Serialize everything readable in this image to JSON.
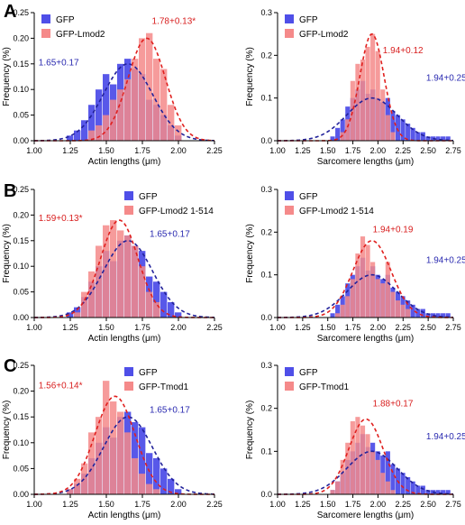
{
  "colors": {
    "gfp": "#4f4fe8",
    "treat": "#f58a8a",
    "fit_gfp": "#22229a",
    "fit_treat": "#e0201e",
    "annot_gfp": "#2a2ab0",
    "annot_treat": "#d81e1e"
  },
  "panel_letters": [
    "A",
    "B",
    "C"
  ],
  "chart_data": [
    {
      "type": "bar",
      "id": "A-actin",
      "xlabel": "Actin lengths (μm)",
      "ylabel": "Frequency (%)",
      "xlim": [
        1.0,
        2.25
      ],
      "ylim": [
        0,
        0.25
      ],
      "xticks": [
        "1.00",
        "1.25",
        "1.50",
        "1.75",
        "2.00",
        "2.25"
      ],
      "yticks": [
        "0.00",
        "0.05",
        "0.10",
        "0.15",
        "0.20",
        "0.25"
      ],
      "bin_width": 0.05,
      "legend_position": "top-left",
      "series": [
        {
          "name": "GFP",
          "bins": [
            1.25,
            1.3,
            1.35,
            1.4,
            1.45,
            1.5,
            1.55,
            1.6,
            1.65,
            1.7,
            1.75,
            1.8,
            1.85,
            1.9,
            1.95,
            2.0
          ],
          "values": [
            0.01,
            0.02,
            0.04,
            0.07,
            0.1,
            0.13,
            0.11,
            0.15,
            0.16,
            0.14,
            0.13,
            0.08,
            0.07,
            0.05,
            0.03,
            0.01
          ],
          "fit": {
            "mean": 1.65,
            "sd": 0.17,
            "peak": 0.15
          },
          "annotation": "1.65+0.17"
        },
        {
          "name": "GFP-Lmod2",
          "bins": [
            1.4,
            1.45,
            1.5,
            1.55,
            1.6,
            1.65,
            1.7,
            1.75,
            1.8,
            1.85,
            1.9,
            1.95,
            2.0
          ],
          "values": [
            0.02,
            0.03,
            0.05,
            0.08,
            0.1,
            0.12,
            0.16,
            0.2,
            0.21,
            0.16,
            0.14,
            0.07,
            0.03
          ],
          "fit": {
            "mean": 1.78,
            "sd": 0.13,
            "peak": 0.2
          },
          "annotation": "1.78+0.13*"
        }
      ]
    },
    {
      "type": "bar",
      "id": "A-sarcomere",
      "xlabel": "Sarcomere lengths (μm)",
      "ylabel": "Frequency (%)",
      "xlim": [
        1.0,
        2.75
      ],
      "ylim": [
        0,
        0.3
      ],
      "xticks": [
        "1.00",
        "1.25",
        "1.50",
        "1.75",
        "2.00",
        "2.25",
        "2.50",
        "2.75"
      ],
      "yticks": [
        "0.0",
        "0.1",
        "0.2",
        "0.3"
      ],
      "bin_width": 0.05,
      "legend_position": "top-left",
      "series": [
        {
          "name": "GFP",
          "bins": [
            1.55,
            1.6,
            1.65,
            1.7,
            1.75,
            1.8,
            1.85,
            1.9,
            1.95,
            2.0,
            2.05,
            2.1,
            2.15,
            2.2,
            2.25,
            2.3,
            2.35,
            2.4,
            2.45,
            2.5,
            2.55,
            2.6,
            2.65,
            2.7
          ],
          "values": [
            0.01,
            0.03,
            0.05,
            0.08,
            0.1,
            0.12,
            0.14,
            0.11,
            0.12,
            0.1,
            0.09,
            0.1,
            0.07,
            0.06,
            0.05,
            0.04,
            0.03,
            0.02,
            0.02,
            0.01,
            0.01,
            0.01,
            0.01,
            0.01
          ],
          "fit": {
            "mean": 1.94,
            "sd": 0.25,
            "peak": 0.1
          },
          "annotation": "1.94+0.25"
        },
        {
          "name": "GFP-Lmod2",
          "bins": [
            1.65,
            1.7,
            1.75,
            1.8,
            1.85,
            1.9,
            1.95,
            2.0,
            2.05,
            2.1,
            2.15
          ],
          "values": [
            0.02,
            0.05,
            0.14,
            0.18,
            0.19,
            0.22,
            0.25,
            0.21,
            0.12,
            0.06,
            0.02
          ],
          "fit": {
            "mean": 1.94,
            "sd": 0.12,
            "peak": 0.25
          },
          "annotation": "1.94+0.12"
        }
      ]
    },
    {
      "type": "bar",
      "id": "B-actin",
      "xlabel": "Actin lengths (μm)",
      "ylabel": "Frequency (%)",
      "xlim": [
        1.0,
        2.25
      ],
      "ylim": [
        0,
        0.25
      ],
      "xticks": [
        "1.00",
        "1.25",
        "1.50",
        "1.75",
        "2.00",
        "2.25"
      ],
      "yticks": [
        "0.00",
        "0.05",
        "0.10",
        "0.15",
        "0.20",
        "0.25"
      ],
      "bin_width": 0.05,
      "legend_position": "top-right",
      "series": [
        {
          "name": "GFP",
          "bins": [
            1.25,
            1.3,
            1.35,
            1.4,
            1.45,
            1.5,
            1.55,
            1.6,
            1.65,
            1.7,
            1.75,
            1.8,
            1.85,
            1.9,
            1.95,
            2.0
          ],
          "values": [
            0.01,
            0.02,
            0.04,
            0.07,
            0.1,
            0.13,
            0.11,
            0.15,
            0.16,
            0.14,
            0.13,
            0.08,
            0.07,
            0.05,
            0.03,
            0.01
          ],
          "fit": {
            "mean": 1.65,
            "sd": 0.17,
            "peak": 0.15
          },
          "annotation": "1.65+0.17"
        },
        {
          "name": "GFP-Lmod2 1-514",
          "bins": [
            1.3,
            1.35,
            1.4,
            1.45,
            1.5,
            1.55,
            1.6,
            1.65,
            1.7,
            1.75,
            1.8,
            1.85
          ],
          "values": [
            0.01,
            0.05,
            0.09,
            0.14,
            0.18,
            0.19,
            0.17,
            0.16,
            0.14,
            0.1,
            0.05,
            0.03
          ],
          "fit": {
            "mean": 1.59,
            "sd": 0.13,
            "peak": 0.19
          },
          "annotation": "1.59+0.13*"
        }
      ]
    },
    {
      "type": "bar",
      "id": "B-sarcomere",
      "xlabel": "Sarcomere lengths (μm)",
      "ylabel": "Frequency (%)",
      "xlim": [
        1.0,
        2.75
      ],
      "ylim": [
        0,
        0.3
      ],
      "xticks": [
        "1.00",
        "1.25",
        "1.50",
        "1.75",
        "2.00",
        "2.25",
        "2.50",
        "2.75"
      ],
      "yticks": [
        "0.0",
        "0.1",
        "0.2",
        "0.3"
      ],
      "bin_width": 0.05,
      "legend_position": "top-left",
      "series": [
        {
          "name": "GFP",
          "bins": [
            1.55,
            1.6,
            1.65,
            1.7,
            1.75,
            1.8,
            1.85,
            1.9,
            1.95,
            2.0,
            2.05,
            2.1,
            2.15,
            2.2,
            2.25,
            2.3,
            2.35,
            2.4,
            2.45,
            2.5,
            2.55,
            2.6,
            2.65,
            2.7
          ],
          "values": [
            0.01,
            0.03,
            0.05,
            0.08,
            0.1,
            0.12,
            0.14,
            0.11,
            0.12,
            0.1,
            0.09,
            0.1,
            0.07,
            0.06,
            0.05,
            0.04,
            0.03,
            0.02,
            0.02,
            0.01,
            0.01,
            0.01,
            0.01,
            0.01
          ],
          "fit": {
            "mean": 1.94,
            "sd": 0.25,
            "peak": 0.1
          },
          "annotation": "1.94+0.25"
        },
        {
          "name": "GFP-Lmod2 1-514",
          "bins": [
            1.6,
            1.65,
            1.7,
            1.75,
            1.8,
            1.85,
            1.9,
            1.95,
            2.0,
            2.05,
            2.1,
            2.15,
            2.2,
            2.25,
            2.3
          ],
          "values": [
            0.01,
            0.03,
            0.05,
            0.09,
            0.15,
            0.19,
            0.17,
            0.13,
            0.09,
            0.08,
            0.13,
            0.06,
            0.04,
            0.03,
            0.02
          ],
          "fit": {
            "mean": 1.94,
            "sd": 0.19,
            "peak": 0.18
          },
          "annotation": "1.94+0.19"
        }
      ]
    },
    {
      "type": "bar",
      "id": "C-actin",
      "xlabel": "Actin lengths (μm)",
      "ylabel": "Frequency (%)",
      "xlim": [
        1.0,
        2.25
      ],
      "ylim": [
        0,
        0.25
      ],
      "xticks": [
        "1.00",
        "1.25",
        "1.50",
        "1.75",
        "2.00",
        "2.25"
      ],
      "yticks": [
        "0.00",
        "0.05",
        "0.10",
        "0.15",
        "0.20",
        "0.25"
      ],
      "bin_width": 0.05,
      "legend_position": "top-right",
      "series": [
        {
          "name": "GFP",
          "bins": [
            1.25,
            1.3,
            1.35,
            1.4,
            1.45,
            1.5,
            1.55,
            1.6,
            1.65,
            1.7,
            1.75,
            1.8,
            1.85,
            1.9,
            1.95,
            2.0
          ],
          "values": [
            0.01,
            0.02,
            0.04,
            0.07,
            0.1,
            0.13,
            0.11,
            0.15,
            0.16,
            0.14,
            0.13,
            0.08,
            0.07,
            0.05,
            0.03,
            0.01
          ],
          "fit": {
            "mean": 1.65,
            "sd": 0.17,
            "peak": 0.15
          },
          "annotation": "1.65+0.17"
        },
        {
          "name": "GFP-Tmod1",
          "bins": [
            1.25,
            1.3,
            1.35,
            1.4,
            1.45,
            1.5,
            1.55,
            1.6,
            1.65,
            1.7,
            1.75,
            1.8,
            1.85
          ],
          "values": [
            0.01,
            0.03,
            0.06,
            0.12,
            0.15,
            0.22,
            0.18,
            0.16,
            0.12,
            0.07,
            0.04,
            0.02,
            0.01
          ],
          "fit": {
            "mean": 1.56,
            "sd": 0.14,
            "peak": 0.19
          },
          "annotation": "1.56+0.14*"
        }
      ]
    },
    {
      "type": "bar",
      "id": "C-sarcomere",
      "xlabel": "Sarcomere lengths (μm)",
      "ylabel": "Frequency (%)",
      "xlim": [
        1.0,
        2.75
      ],
      "ylim": [
        0,
        0.3
      ],
      "xticks": [
        "1.00",
        "1.25",
        "1.50",
        "1.75",
        "2.00",
        "2.25",
        "2.50",
        "2.75"
      ],
      "yticks": [
        "0.0",
        "0.1",
        "0.2",
        "0.3"
      ],
      "bin_width": 0.05,
      "legend_position": "top-left",
      "series": [
        {
          "name": "GFP",
          "bins": [
            1.55,
            1.6,
            1.65,
            1.7,
            1.75,
            1.8,
            1.85,
            1.9,
            1.95,
            2.0,
            2.05,
            2.1,
            2.15,
            2.2,
            2.25,
            2.3,
            2.35,
            2.4,
            2.45,
            2.5,
            2.55,
            2.6,
            2.65,
            2.7
          ],
          "values": [
            0.01,
            0.03,
            0.05,
            0.08,
            0.1,
            0.12,
            0.14,
            0.11,
            0.12,
            0.1,
            0.09,
            0.1,
            0.07,
            0.06,
            0.05,
            0.04,
            0.03,
            0.02,
            0.02,
            0.01,
            0.01,
            0.01,
            0.01,
            0.01
          ],
          "fit": {
            "mean": 1.94,
            "sd": 0.25,
            "peak": 0.1
          },
          "annotation": "1.94+0.25"
        },
        {
          "name": "GFP-Tmod1",
          "bins": [
            1.55,
            1.6,
            1.65,
            1.7,
            1.75,
            1.8,
            1.85,
            1.9,
            1.95,
            2.0,
            2.05,
            2.1,
            2.15
          ],
          "values": [
            0.01,
            0.03,
            0.08,
            0.12,
            0.17,
            0.18,
            0.16,
            0.14,
            0.1,
            0.08,
            0.05,
            0.03,
            0.01
          ],
          "fit": {
            "mean": 1.88,
            "sd": 0.17,
            "peak": 0.175
          },
          "annotation": "1.88+0.17"
        }
      ]
    }
  ]
}
